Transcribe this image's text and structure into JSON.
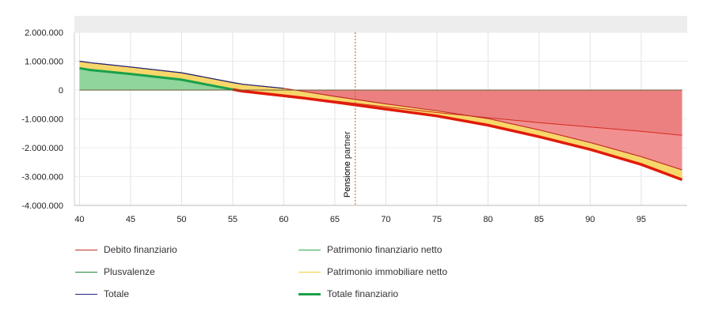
{
  "chart_data": {
    "type": "area",
    "title": "",
    "xlabel": "",
    "ylabel": "",
    "x_ticks": [
      40,
      45,
      50,
      55,
      60,
      65,
      70,
      75,
      80,
      85,
      90,
      95
    ],
    "y_ticks": [
      2000000,
      1000000,
      0,
      -1000000,
      -2000000,
      -3000000,
      -4000000
    ],
    "y_tick_labels": [
      "2.000.000",
      "1.000.000",
      "0",
      "-1.000.000",
      "-2.000.000",
      "-3.000.000",
      "-4.000.000"
    ],
    "xlim": [
      39.5,
      99.5
    ],
    "ylim": [
      -4000000,
      2000000
    ],
    "grid": true,
    "legend_position": "bottom",
    "marker": {
      "x": 67,
      "labels": [
        "Pensione",
        "Pensione partner"
      ]
    },
    "x": [
      40,
      41,
      45,
      50,
      55,
      56,
      60,
      62,
      65,
      70,
      75,
      80,
      85,
      90,
      95,
      99
    ],
    "series": [
      {
        "name": "Debito finanziario",
        "color": "#c0302a",
        "values": [
          0,
          0,
          0,
          0,
          0,
          -40000,
          -180000,
          -260000,
          -380000,
          -580000,
          -780000,
          -960000,
          -1130000,
          -1280000,
          -1430000,
          -1570000
        ]
      },
      {
        "name": "Patrimonio finanziario netto",
        "color": "#2ea84a",
        "values": [
          760000,
          700000,
          560000,
          360000,
          20000,
          -20000,
          -190000,
          -280000,
          -410000,
          -640000,
          -880000,
          -1180000,
          -1560000,
          -2000000,
          -2500000,
          -2930000
        ]
      },
      {
        "name": "Plusvalenze",
        "color": "#1f8a3a",
        "values": [
          0,
          0,
          0,
          0,
          0,
          0,
          0,
          0,
          0,
          0,
          0,
          0,
          0,
          0,
          0,
          0
        ]
      },
      {
        "name": "Patrimonio immobiliare netto",
        "color": "#f2d03a",
        "values": [
          240000,
          230000,
          220000,
          220000,
          200000,
          190000,
          190000,
          180000,
          180000,
          170000,
          170000,
          170000,
          160000,
          160000,
          160000,
          160000
        ]
      },
      {
        "name": "Totale",
        "color": "#1c2a7a",
        "values": [
          1000000,
          950000,
          800000,
          600000,
          260000,
          200000,
          60000,
          -50000,
          -220000,
          -480000,
          -720000,
          -990000,
          -1380000,
          -1820000,
          -2310000,
          -2770000
        ]
      },
      {
        "name": "Totale finanziario",
        "color": "#1aa04a",
        "values": [
          760000,
          700000,
          560000,
          360000,
          20000,
          -40000,
          -200000,
          -280000,
          -420000,
          -660000,
          -900000,
          -1220000,
          -1620000,
          -2060000,
          -2580000,
          -3110000
        ]
      }
    ]
  }
}
